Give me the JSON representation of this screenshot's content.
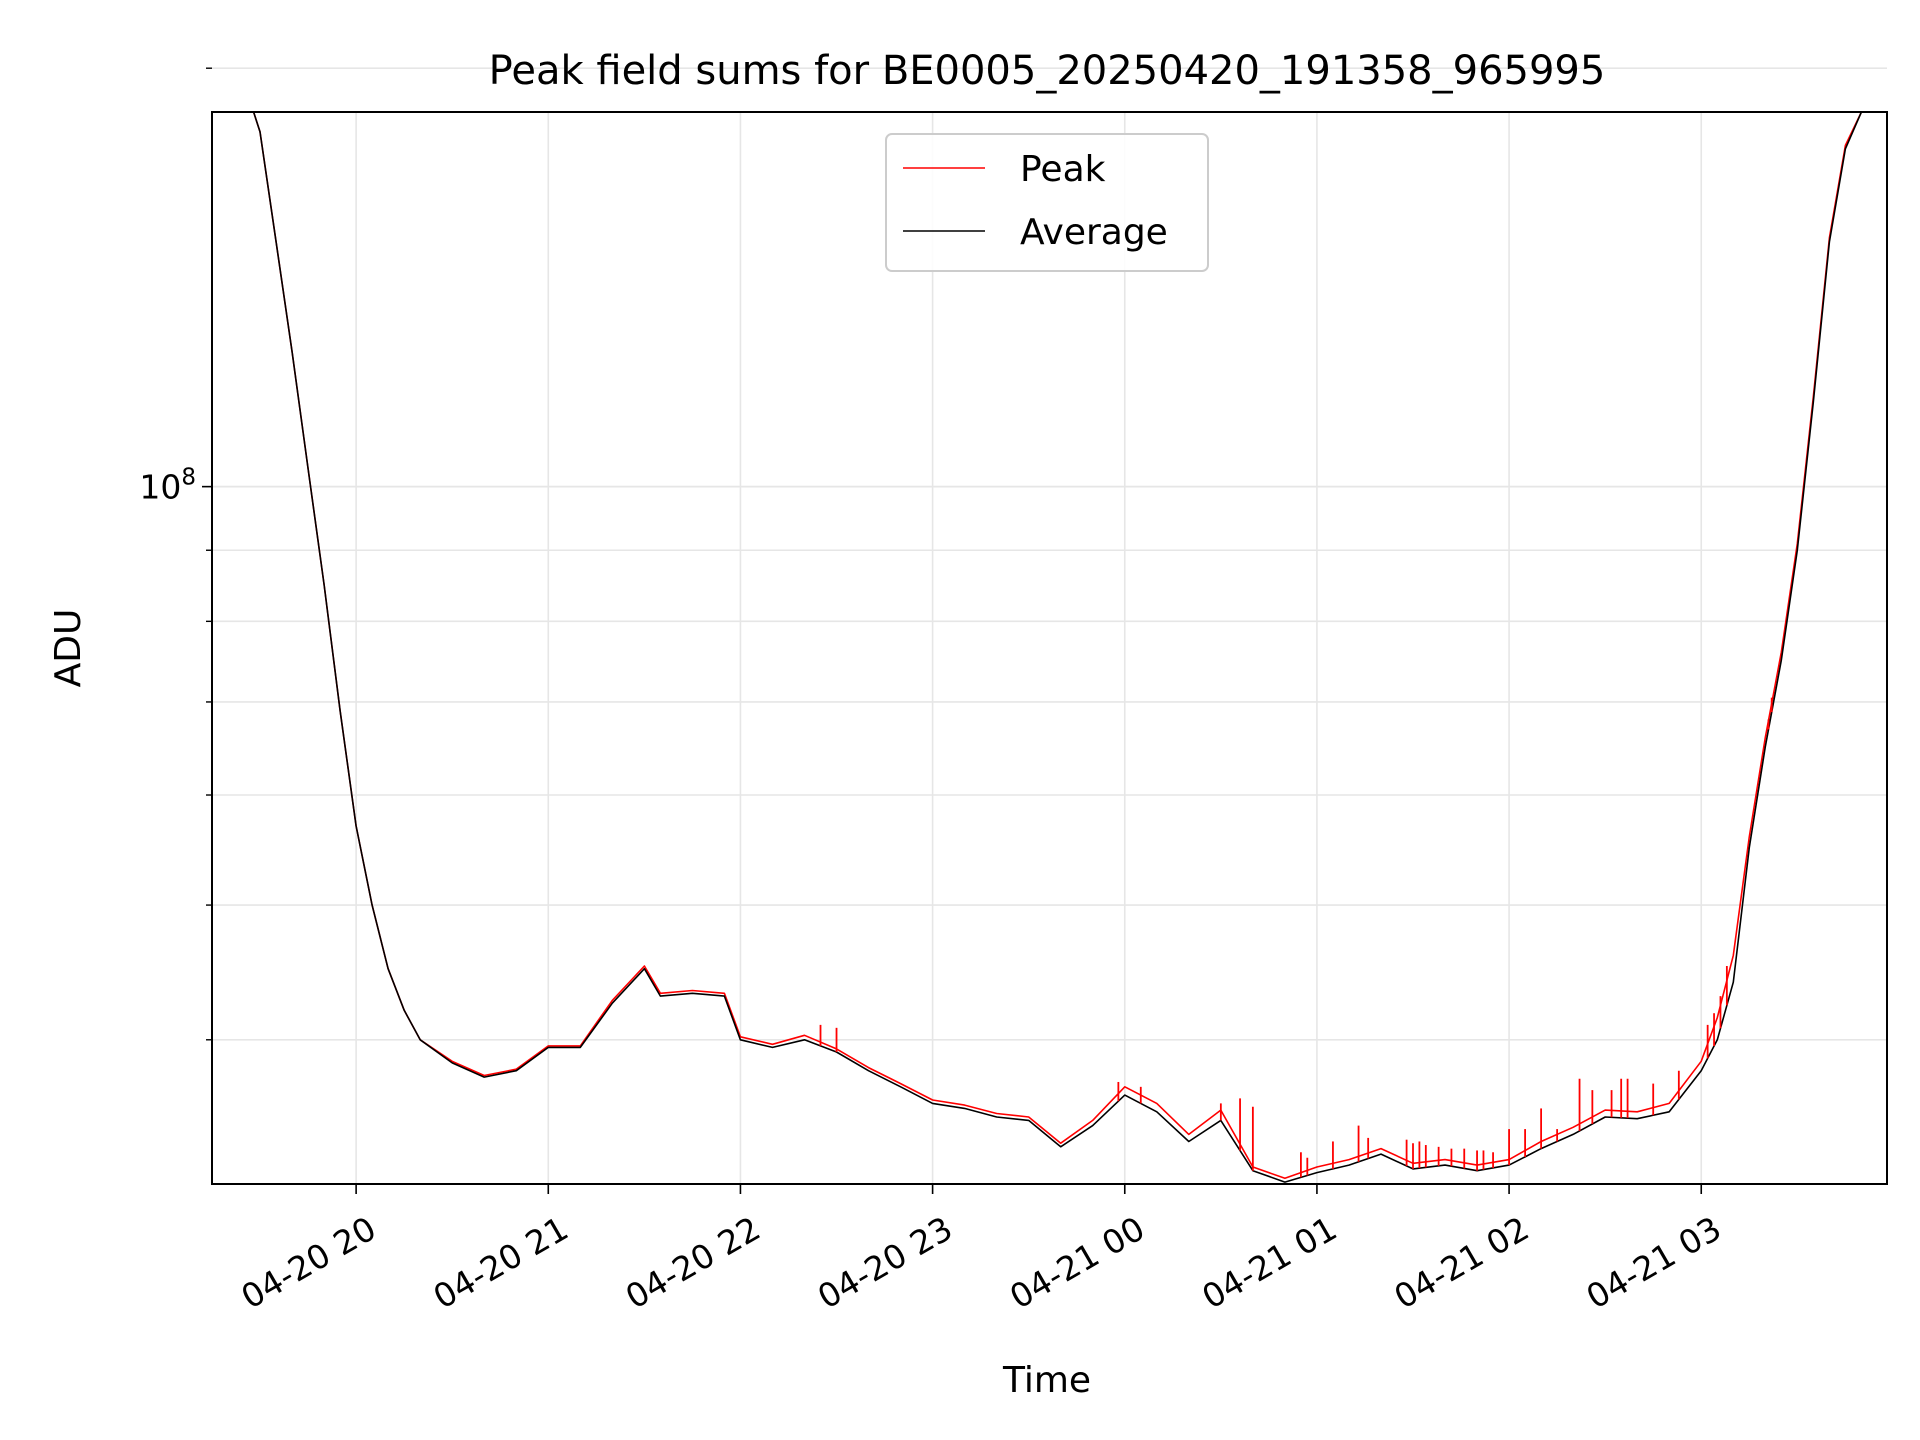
{
  "chart_data": {
    "type": "line",
    "title": "Peak field sums for BE0005_20250420_191358_965995",
    "xlabel": "Time",
    "ylabel": "ADU",
    "yscale": "log",
    "xlim": [
      "2025-04-20 19:15",
      "2025-04-21 03:58"
    ],
    "ylim": [
      31500000,
      186000000
    ],
    "x_ticks": [
      "04-20 20",
      "04-20 21",
      "04-20 22",
      "04-20 23",
      "04-21 00",
      "04-21 01",
      "04-21 02",
      "04-21 03"
    ],
    "y_major_tick_base": "10",
    "y_major_tick_exp": "8",
    "y_major_tick_value": 100000000,
    "y_minor_ticks": [
      40000000,
      50000000,
      60000000,
      70000000,
      80000000,
      90000000,
      200000000
    ],
    "grid": true,
    "legend_position": "upper center",
    "legend": [
      "Peak",
      "Average"
    ],
    "series": [
      {
        "name": "Average",
        "color": "#000000",
        "x": [
          "2025-04-20 19:28",
          "2025-04-20 19:30",
          "2025-04-20 19:35",
          "2025-04-20 19:40",
          "2025-04-20 19:45",
          "2025-04-20 19:50",
          "2025-04-20 19:55",
          "2025-04-20 20:00",
          "2025-04-20 20:05",
          "2025-04-20 20:10",
          "2025-04-20 20:15",
          "2025-04-20 20:20",
          "2025-04-20 20:30",
          "2025-04-20 20:40",
          "2025-04-20 20:50",
          "2025-04-20 21:00",
          "2025-04-20 21:10",
          "2025-04-20 21:20",
          "2025-04-20 21:30",
          "2025-04-20 21:35",
          "2025-04-20 21:45",
          "2025-04-20 21:55",
          "2025-04-20 22:00",
          "2025-04-20 22:10",
          "2025-04-20 22:20",
          "2025-04-20 22:30",
          "2025-04-20 22:40",
          "2025-04-20 22:50",
          "2025-04-20 23:00",
          "2025-04-20 23:10",
          "2025-04-20 23:20",
          "2025-04-20 23:30",
          "2025-04-20 23:40",
          "2025-04-20 23:50",
          "2025-04-21 00:00",
          "2025-04-21 00:10",
          "2025-04-21 00:20",
          "2025-04-21 00:30",
          "2025-04-21 00:40",
          "2025-04-21 00:50",
          "2025-04-21 01:00",
          "2025-04-21 01:10",
          "2025-04-21 01:20",
          "2025-04-21 01:30",
          "2025-04-21 01:40",
          "2025-04-21 01:50",
          "2025-04-21 02:00",
          "2025-04-21 02:10",
          "2025-04-21 02:20",
          "2025-04-21 02:30",
          "2025-04-21 02:40",
          "2025-04-21 02:50",
          "2025-04-21 03:00",
          "2025-04-21 03:05",
          "2025-04-21 03:10",
          "2025-04-21 03:15",
          "2025-04-21 03:20",
          "2025-04-21 03:25",
          "2025-04-21 03:30",
          "2025-04-21 03:35",
          "2025-04-21 03:40",
          "2025-04-21 03:45",
          "2025-04-21 03:50",
          "2025-04-21 03:53"
        ],
        "y": [
          186000000,
          180000000,
          150000000,
          125000000,
          103000000,
          85000000,
          69000000,
          57000000,
          50000000,
          45000000,
          42000000,
          40000000,
          38500000,
          37600000,
          38000000,
          39500000,
          39500000,
          42500000,
          45000000,
          43000000,
          43200000,
          43000000,
          40000000,
          39500000,
          40000000,
          39200000,
          38000000,
          37000000,
          36000000,
          35700000,
          35200000,
          35000000,
          33500000,
          34700000,
          36500000,
          35500000,
          33800000,
          35000000,
          32200000,
          31600000,
          32100000,
          32500000,
          33100000,
          32300000,
          32500000,
          32200000,
          32500000,
          33400000,
          34200000,
          35200000,
          35100000,
          35500000,
          38000000,
          40000000,
          44000000,
          55000000,
          65000000,
          75000000,
          90000000,
          115000000,
          150000000,
          175000000,
          186000000,
          186000000
        ]
      },
      {
        "name": "Peak",
        "color": "#ff0000",
        "x": [
          "2025-04-20 19:28",
          "2025-04-20 19:30",
          "2025-04-20 19:35",
          "2025-04-20 19:40",
          "2025-04-20 19:45",
          "2025-04-20 19:50",
          "2025-04-20 19:55",
          "2025-04-20 20:00",
          "2025-04-20 20:05",
          "2025-04-20 20:10",
          "2025-04-20 20:15",
          "2025-04-20 20:20",
          "2025-04-20 20:30",
          "2025-04-20 20:40",
          "2025-04-20 20:50",
          "2025-04-20 21:00",
          "2025-04-20 21:10",
          "2025-04-20 21:20",
          "2025-04-20 21:30",
          "2025-04-20 21:35",
          "2025-04-20 21:45",
          "2025-04-20 21:55",
          "2025-04-20 22:00",
          "2025-04-20 22:10",
          "2025-04-20 22:20",
          "2025-04-20 22:30",
          "2025-04-20 22:40",
          "2025-04-20 22:50",
          "2025-04-20 23:00",
          "2025-04-20 23:10",
          "2025-04-20 23:20",
          "2025-04-20 23:30",
          "2025-04-20 23:40",
          "2025-04-20 23:50",
          "2025-04-21 00:00",
          "2025-04-21 00:10",
          "2025-04-21 00:20",
          "2025-04-21 00:30",
          "2025-04-21 00:40",
          "2025-04-21 00:50",
          "2025-04-21 01:00",
          "2025-04-21 01:10",
          "2025-04-21 01:20",
          "2025-04-21 01:30",
          "2025-04-21 01:40",
          "2025-04-21 01:50",
          "2025-04-21 02:00",
          "2025-04-21 02:10",
          "2025-04-21 02:20",
          "2025-04-21 02:30",
          "2025-04-21 02:40",
          "2025-04-21 02:50",
          "2025-04-21 03:00",
          "2025-04-21 03:05",
          "2025-04-21 03:10",
          "2025-04-21 03:15",
          "2025-04-21 03:20",
          "2025-04-21 03:25",
          "2025-04-21 03:30",
          "2025-04-21 03:35",
          "2025-04-21 03:40",
          "2025-04-21 03:45",
          "2025-04-21 03:50",
          "2025-04-21 03:53"
        ],
        "y": [
          186000000,
          180000000,
          150000000,
          125000000,
          103000000,
          85000000,
          69000000,
          57000000,
          50000000,
          45000000,
          42000000,
          40000000,
          38600000,
          37700000,
          38100000,
          39600000,
          39600000,
          42700000,
          45200000,
          43200000,
          43400000,
          43200000,
          40200000,
          39700000,
          40300000,
          39400000,
          38200000,
          37200000,
          36200000,
          35900000,
          35400000,
          35200000,
          33700000,
          35000000,
          37000000,
          36000000,
          34200000,
          35600000,
          32400000,
          31800000,
          32400000,
          32800000,
          33400000,
          32600000,
          32800000,
          32500000,
          32800000,
          33800000,
          34600000,
          35600000,
          35500000,
          36000000,
          38600000,
          41500000,
          46000000,
          56000000,
          66000000,
          76000000,
          91000000,
          116000000,
          151000000,
          176000000,
          186000000,
          186000000
        ]
      }
    ],
    "peak_spikes": [
      {
        "x": "2025-04-20 22:25",
        "y": 41000000
      },
      {
        "x": "2025-04-20 22:30",
        "y": 40800000
      },
      {
        "x": "2025-04-20 23:58",
        "y": 37300000
      },
      {
        "x": "2025-04-21 00:05",
        "y": 37000000
      },
      {
        "x": "2025-04-21 00:30",
        "y": 36000000
      },
      {
        "x": "2025-04-21 00:36",
        "y": 36300000
      },
      {
        "x": "2025-04-21 00:40",
        "y": 35800000
      },
      {
        "x": "2025-04-21 00:55",
        "y": 33200000
      },
      {
        "x": "2025-04-21 00:57",
        "y": 32900000
      },
      {
        "x": "2025-04-21 01:05",
        "y": 33800000
      },
      {
        "x": "2025-04-21 01:13",
        "y": 34700000
      },
      {
        "x": "2025-04-21 01:16",
        "y": 34000000
      },
      {
        "x": "2025-04-21 01:28",
        "y": 33900000
      },
      {
        "x": "2025-04-21 01:30",
        "y": 33700000
      },
      {
        "x": "2025-04-21 01:32",
        "y": 33800000
      },
      {
        "x": "2025-04-21 01:34",
        "y": 33600000
      },
      {
        "x": "2025-04-21 01:38",
        "y": 33500000
      },
      {
        "x": "2025-04-21 01:42",
        "y": 33400000
      },
      {
        "x": "2025-04-21 01:46",
        "y": 33400000
      },
      {
        "x": "2025-04-21 01:50",
        "y": 33300000
      },
      {
        "x": "2025-04-21 01:52",
        "y": 33300000
      },
      {
        "x": "2025-04-21 01:55",
        "y": 33200000
      },
      {
        "x": "2025-04-21 02:00",
        "y": 34500000
      },
      {
        "x": "2025-04-21 02:05",
        "y": 34500000
      },
      {
        "x": "2025-04-21 02:10",
        "y": 35700000
      },
      {
        "x": "2025-04-21 02:15",
        "y": 34500000
      },
      {
        "x": "2025-04-21 02:22",
        "y": 37500000
      },
      {
        "x": "2025-04-21 02:26",
        "y": 36800000
      },
      {
        "x": "2025-04-21 02:32",
        "y": 36800000
      },
      {
        "x": "2025-04-21 02:35",
        "y": 37500000
      },
      {
        "x": "2025-04-21 02:37",
        "y": 37500000
      },
      {
        "x": "2025-04-21 02:45",
        "y": 37200000
      },
      {
        "x": "2025-04-21 02:53",
        "y": 38000000
      },
      {
        "x": "2025-04-21 03:02",
        "y": 41000000
      },
      {
        "x": "2025-04-21 03:04",
        "y": 41800000
      },
      {
        "x": "2025-04-21 03:06",
        "y": 43000000
      },
      {
        "x": "2025-04-21 03:08",
        "y": 45200000
      },
      {
        "x": "2025-04-21 03:10",
        "y": 44000000
      },
      {
        "x": "2025-04-21 03:21",
        "y": 68000000
      },
      {
        "x": "2025-04-21 03:22",
        "y": 70500000
      }
    ]
  }
}
